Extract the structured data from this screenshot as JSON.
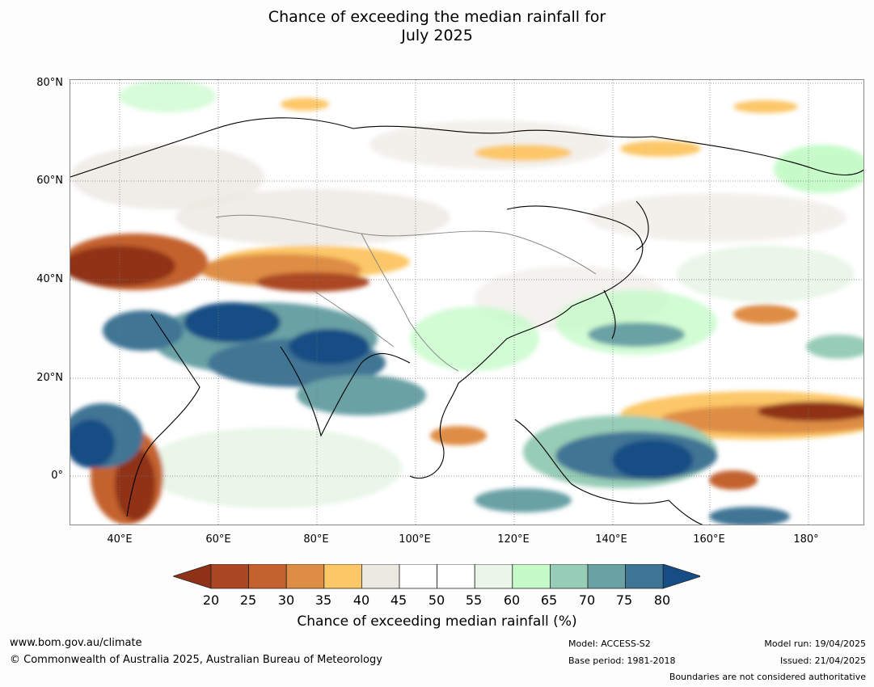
{
  "title": {
    "line1": "Chance of exceeding the median rainfall for",
    "line2": "July 2025"
  },
  "axes": {
    "lat_labels": [
      "80°N",
      "60°N",
      "40°N",
      "20°N",
      "0°"
    ],
    "lon_labels": [
      "40°E",
      "60°E",
      "80°E",
      "100°E",
      "120°E",
      "140°E",
      "160°E",
      "180°"
    ]
  },
  "legend": {
    "title": "Chance of exceeding median rainfall (%)",
    "ticks": [
      "20",
      "25",
      "30",
      "35",
      "40",
      "45",
      "50",
      "55",
      "60",
      "65",
      "70",
      "75",
      "80"
    ],
    "colors": [
      "#8f3218",
      "#ac4724",
      "#c4622f",
      "#de8d44",
      "#fcc767",
      "#ece9e2",
      "#ffffff",
      "#ffffff",
      "#e9f6e8",
      "#c6fbc9",
      "#97ccb6",
      "#69a1a5",
      "#3f7594",
      "#154d84"
    ]
  },
  "footer": {
    "website": "www.bom.gov.au/climate",
    "copyright": "© Commonwealth of Australia 2025, Australian Bureau of Meteorology",
    "model": "Model: ACCESS-S2",
    "base_period": "Base period: 1981-2018",
    "model_run": "Model run: 19/04/2025",
    "issued": "Issued: 21/04/2025",
    "disclaimer": "Boundaries are not considered authoritative"
  }
}
